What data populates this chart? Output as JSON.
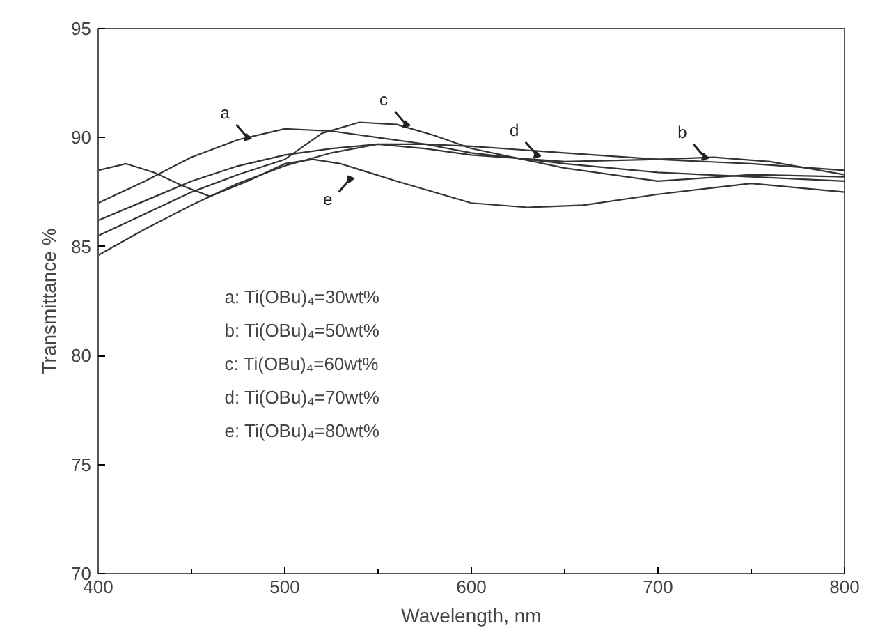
{
  "chart_data": {
    "type": "line",
    "xlabel": "Wavelength, nm",
    "ylabel": "Transmittance %",
    "xlim": [
      400,
      800
    ],
    "ylim": [
      70,
      95
    ],
    "xticks": [
      400,
      {
        "value": 450,
        "label": null
      },
      500,
      {
        "value": 550,
        "label": null
      },
      600,
      {
        "value": 650,
        "label": null
      },
      700,
      {
        "value": 750,
        "label": null
      },
      800
    ],
    "yticks": [
      70,
      75,
      80,
      85,
      90,
      95
    ],
    "grid": false,
    "marker": "none",
    "line_style": "solid",
    "series": [
      {
        "color": "#333333",
        "x": [
          400,
          425,
          450,
          475,
          500,
          525,
          550,
          575,
          600,
          650,
          700,
          750,
          800
        ],
        "values": [
          87.0,
          88.0,
          89.1,
          89.9,
          90.4,
          90.3,
          90.0,
          89.7,
          89.3,
          88.8,
          88.4,
          88.2,
          88.0
        ]
      },
      {
        "color": "#333333",
        "x": [
          400,
          425,
          450,
          475,
          500,
          525,
          550,
          575,
          600,
          650,
          700,
          730,
          760,
          800
        ],
        "values": [
          86.2,
          87.1,
          88.0,
          88.7,
          89.2,
          89.5,
          89.7,
          89.5,
          89.2,
          88.9,
          89.0,
          89.1,
          88.9,
          88.3
        ]
      },
      {
        "color": "#333333",
        "x": [
          400,
          425,
          450,
          475,
          500,
          520,
          540,
          560,
          580,
          600,
          650,
          700,
          750,
          800
        ],
        "values": [
          85.5,
          86.5,
          87.5,
          88.3,
          89.0,
          90.2,
          90.7,
          90.6,
          90.1,
          89.5,
          88.6,
          88.0,
          88.3,
          88.2
        ]
      },
      {
        "color": "#333333",
        "x": [
          400,
          425,
          450,
          475,
          500,
          525,
          550,
          575,
          600,
          650,
          700,
          750,
          800
        ],
        "values": [
          84.6,
          85.8,
          86.9,
          87.9,
          88.7,
          89.3,
          89.7,
          89.7,
          89.6,
          89.3,
          89.0,
          88.8,
          88.5
        ]
      },
      {
        "color": "#333333",
        "x": [
          400,
          415,
          430,
          445,
          460,
          480,
          500,
          515,
          530,
          560,
          600,
          630,
          660,
          700,
          750,
          800
        ],
        "values": [
          88.5,
          88.8,
          88.4,
          87.8,
          87.3,
          88.0,
          88.8,
          89.0,
          88.8,
          88.0,
          87.0,
          86.8,
          86.9,
          87.4,
          87.9,
          87.5
        ]
      }
    ],
    "annotations": [
      {
        "text": "a",
        "x": 480,
        "y": 90.0
      },
      {
        "text": "b",
        "x": 725,
        "y": 89.1
      },
      {
        "text": "c",
        "x": 565,
        "y": 90.6
      },
      {
        "text": "d",
        "x": 635,
        "y": 89.2
      },
      {
        "text": "e",
        "x": 535,
        "y": 88.1
      },
      "a:  Ti(OBu)₄=30wt%",
      "b:  Ti(OBu)₄=50wt%",
      "c:  Ti(OBu)₄=60wt%",
      "d:  Ti(OBu)₄=70wt%",
      "e:  Ti(OBu)₄=80wt%"
    ]
  }
}
